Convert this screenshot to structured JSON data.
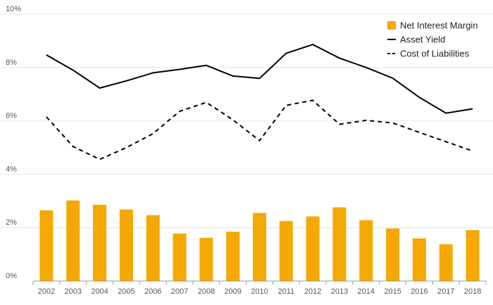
{
  "chart_data": {
    "type": "bar+line",
    "title": "",
    "xlabel": "",
    "ylabel": "",
    "ylim": [
      0,
      10
    ],
    "y_ticks": [
      "0%",
      "2%",
      "4%",
      "6%",
      "8%",
      "10%"
    ],
    "y_tick_values": [
      0,
      2,
      4,
      6,
      8,
      10
    ],
    "grid": true,
    "legend_position": "top-right",
    "categories": [
      "2002",
      "2003",
      "2004",
      "2005",
      "2006",
      "2007",
      "2008",
      "2009",
      "2010",
      "2011",
      "2012",
      "2013",
      "2014",
      "2015",
      "2016",
      "2017",
      "2018"
    ],
    "series": [
      {
        "name": "Net Interest Margin",
        "kind": "bar",
        "color": "#F5A800",
        "values": [
          2.65,
          3.02,
          2.86,
          2.68,
          2.47,
          1.78,
          1.62,
          1.85,
          2.55,
          2.25,
          2.42,
          2.76,
          2.28,
          1.97,
          1.6,
          1.38,
          1.91
        ]
      },
      {
        "name": "Asset Yield",
        "kind": "line",
        "style": "solid",
        "color": "#000000",
        "values": [
          8.47,
          7.9,
          7.23,
          7.5,
          7.8,
          7.93,
          8.08,
          7.68,
          7.59,
          8.53,
          8.86,
          8.35,
          8.0,
          7.6,
          6.88,
          6.29,
          6.45
        ]
      },
      {
        "name": "Cost of Liabilities",
        "kind": "line",
        "style": "dashed",
        "color": "#000000",
        "values": [
          6.15,
          5.04,
          4.56,
          5.0,
          5.52,
          6.36,
          6.69,
          6.04,
          5.26,
          6.58,
          6.77,
          5.87,
          6.02,
          5.92,
          5.57,
          5.22,
          4.87
        ]
      }
    ]
  }
}
